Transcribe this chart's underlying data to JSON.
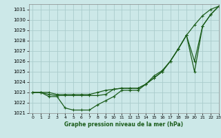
{
  "title": "Graphe pression niveau de la mer (hPa)",
  "bg_color": "#cce8e8",
  "grid_color": "#aacccc",
  "line_color": "#1a5c1a",
  "xlim": [
    -0.5,
    23
  ],
  "ylim": [
    1021.0,
    1031.5
  ],
  "yticks": [
    1021,
    1022,
    1023,
    1024,
    1025,
    1026,
    1027,
    1028,
    1029,
    1030,
    1031
  ],
  "xticks": [
    0,
    1,
    2,
    3,
    4,
    5,
    6,
    7,
    8,
    9,
    10,
    11,
    12,
    13,
    14,
    15,
    16,
    17,
    18,
    19,
    20,
    21,
    22,
    23
  ],
  "series_upper_x": [
    0,
    1,
    2,
    3,
    4,
    5,
    6,
    7,
    8,
    9,
    10,
    11,
    12,
    13,
    14,
    15,
    16,
    17,
    18,
    19,
    20,
    21,
    22,
    23
  ],
  "series_upper_y": [
    1023.0,
    1023.0,
    1023.0,
    1022.8,
    1022.8,
    1022.8,
    1022.8,
    1022.8,
    1023.0,
    1023.2,
    1023.3,
    1023.4,
    1023.4,
    1023.4,
    1023.8,
    1024.4,
    1025.0,
    1026.0,
    1027.2,
    1028.5,
    1029.5,
    1030.4,
    1031.0,
    1031.3
  ],
  "series_mid_x": [
    0,
    1,
    2,
    3,
    4,
    5,
    6,
    7,
    8,
    9,
    10,
    11,
    12,
    13,
    14,
    15,
    16,
    17,
    18,
    19,
    20,
    21,
    22,
    23
  ],
  "series_mid_y": [
    1023.0,
    1023.0,
    1022.8,
    1022.7,
    1022.7,
    1022.7,
    1022.7,
    1022.7,
    1022.7,
    1022.8,
    1023.3,
    1023.4,
    1023.4,
    1023.4,
    1023.8,
    1024.4,
    1025.0,
    1026.0,
    1027.2,
    1028.5,
    1026.0,
    1029.4,
    1030.5,
    1031.3
  ],
  "series_lower_x": [
    0,
    1,
    2,
    3,
    4,
    5,
    6,
    7,
    8,
    9,
    10,
    11,
    12,
    13,
    14,
    15,
    16,
    17,
    18,
    19,
    20,
    21,
    22,
    23
  ],
  "series_lower_y": [
    1023.0,
    1023.0,
    1022.6,
    1022.6,
    1021.5,
    1021.3,
    1021.3,
    1021.3,
    1021.8,
    1022.2,
    1022.6,
    1023.2,
    1023.2,
    1023.2,
    1023.8,
    1024.6,
    1025.1,
    1026.0,
    1027.2,
    1028.5,
    1025.0,
    1029.4,
    1030.5,
    1031.3
  ]
}
